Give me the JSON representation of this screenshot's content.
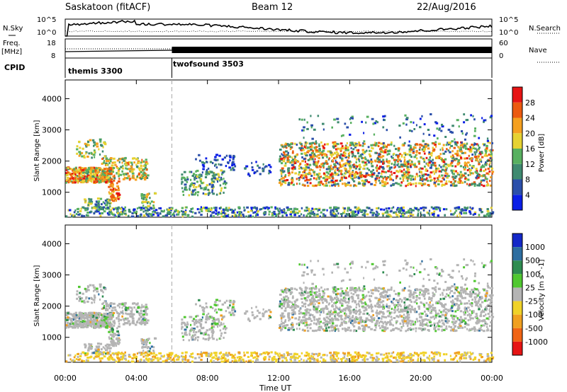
{
  "header": {
    "station": "Saskatoon (fitACF)",
    "beam": "Beam 12",
    "date": "22/Aug/2016"
  },
  "summary_panels": {
    "nsky_label": "N.Sky",
    "nsearch_label": "N.Search",
    "freq_label_1": "Freq.",
    "freq_label_2": "[MHz]",
    "nave_label": "Nave",
    "cpid_label": "CPID",
    "noise_ticks": [
      "10^5",
      "10^0"
    ],
    "freq_ticks": [
      "18",
      "8"
    ],
    "nave_ticks": [
      "60",
      "0"
    ]
  },
  "cpid_segments": [
    {
      "name": "themis 3300",
      "start_hour": 0,
      "end_hour": 6
    },
    {
      "name": "twofsound 3503",
      "start_hour": 6,
      "end_hour": 24
    }
  ],
  "chart_data": [
    {
      "type": "heatmap",
      "title": "",
      "xlabel": "Time UT",
      "ylabel": "Slant Range [km]",
      "colorbar_label": "Power [dB]",
      "colorbar_ticks": [
        "28",
        "24",
        "20",
        "16",
        "12",
        "8",
        "4"
      ],
      "colorbar_colors": [
        "#0a1ee6",
        "#2b4faa",
        "#3f8a70",
        "#58b060",
        "#e6d232",
        "#f5a020",
        "#ec5a10",
        "#e61414"
      ],
      "xlim": [
        0,
        24
      ],
      "ylim": [
        200,
        4600
      ],
      "x_ticks": [
        0,
        4,
        8,
        12,
        16,
        20,
        24
      ],
      "y_ticks": [
        1000,
        2000,
        3000,
        4000
      ]
    },
    {
      "type": "heatmap",
      "title": "",
      "xlabel": "Time UT",
      "ylabel": "Slant Range [km]",
      "colorbar_label": "Velocity [m s^-1]",
      "colorbar_ticks": [
        "1000",
        "500",
        "100",
        "25",
        "-25",
        "-100",
        "-500",
        "-1000"
      ],
      "colorbar_colors": [
        "#1428c8",
        "#2e6ea0",
        "#2e8c50",
        "#50c830",
        "#b4b4b4",
        "#f0d228",
        "#f0a020",
        "#f06414",
        "#e61414"
      ],
      "xlim": [
        0,
        24
      ],
      "ylim": [
        200,
        4600
      ],
      "x_ticks": [
        0,
        4,
        8,
        12,
        16,
        20,
        24
      ],
      "y_ticks": [
        1000,
        2000,
        3000,
        4000
      ]
    }
  ],
  "x_tick_labels": [
    "00:00",
    "04:00",
    "08:00",
    "12:00",
    "16:00",
    "20:00",
    "00:00"
  ],
  "y_tick_labels": [
    "1000",
    "2000",
    "3000",
    "4000"
  ],
  "x_axis_label": "Time UT",
  "y_axis_label": "Slant Range [km]"
}
